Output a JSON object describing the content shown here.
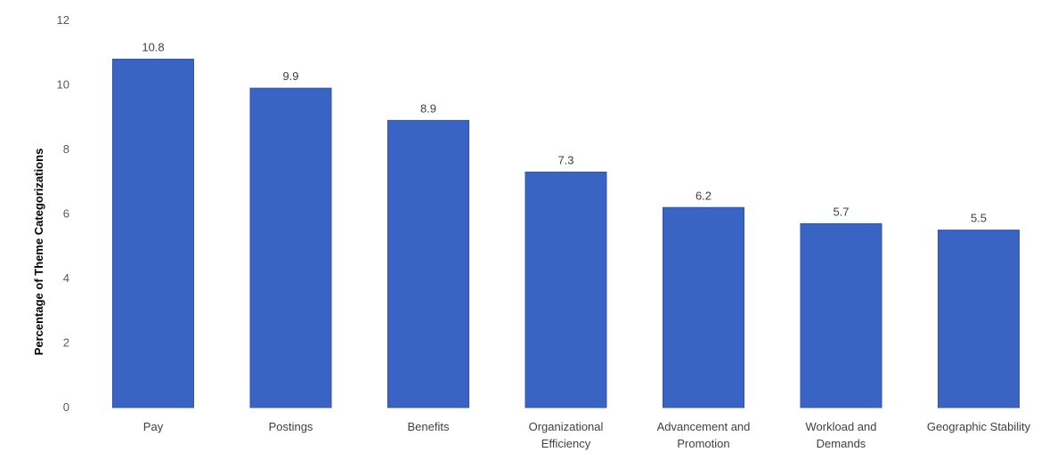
{
  "chart_data": {
    "type": "bar",
    "title": "",
    "xlabel": "",
    "ylabel": "Percentage of Theme Categorizations",
    "categories": [
      [
        "Pay"
      ],
      [
        "Postings"
      ],
      [
        "Benefits"
      ],
      [
        "Organizational",
        "Efficiency"
      ],
      [
        "Advancement and",
        "Promotion"
      ],
      [
        "Workload and",
        "Demands"
      ],
      [
        "Geographic Stability"
      ]
    ],
    "values": [
      10.8,
      9.9,
      8.9,
      7.3,
      6.2,
      5.7,
      5.5
    ],
    "data_labels": [
      "10.8",
      "9.9",
      "8.9",
      "7.3",
      "6.2",
      "5.7",
      "5.5"
    ],
    "ylim": [
      0,
      12
    ],
    "yticks": [
      0,
      2,
      4,
      6,
      8,
      10,
      12
    ],
    "grid": false,
    "legend": "none",
    "colors": {
      "bar": "#3a64c4",
      "bar_edge": "#2f55ad"
    }
  }
}
